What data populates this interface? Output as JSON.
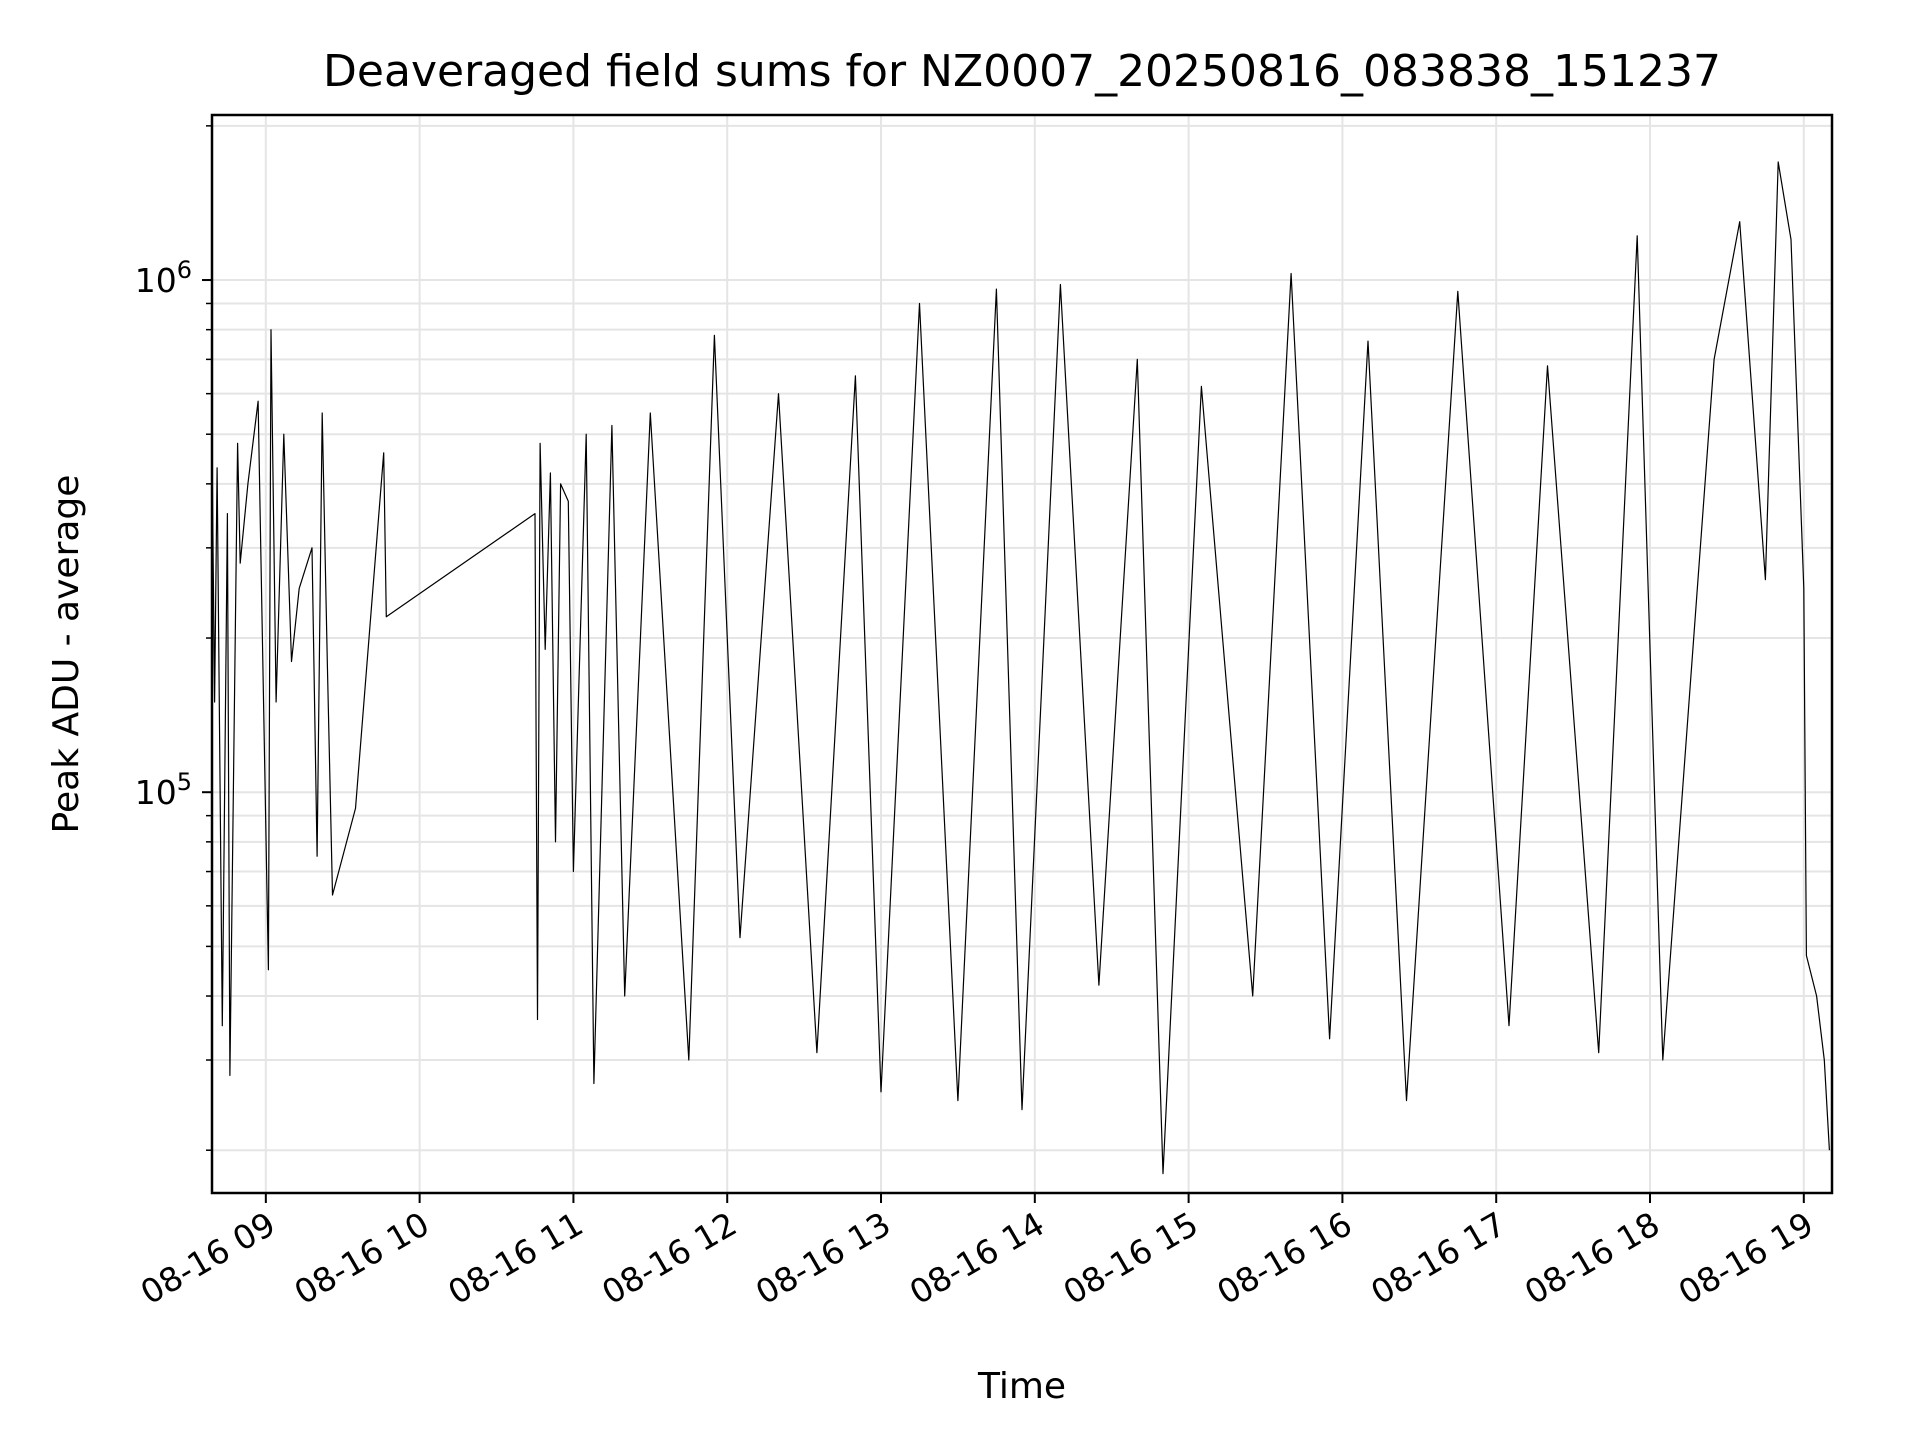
{
  "chart_data": {
    "type": "line",
    "title": "Deaveraged field sums for NZ0007_20250816_083838_151237",
    "xlabel": "Time",
    "ylabel": "Peak ADU - average",
    "y_scale": "log",
    "ylim": [
      16500,
      2100000
    ],
    "xlim": [
      "08-16 08:39",
      "08-16 19:11"
    ],
    "x_ticks": [
      "08-16 09",
      "08-16 10",
      "08-16 11",
      "08-16 12",
      "08-16 13",
      "08-16 14",
      "08-16 15",
      "08-16 16",
      "08-16 17",
      "08-16 18",
      "08-16 19"
    ],
    "y_ticks": [
      {
        "base": "10",
        "exp": "5"
      },
      {
        "base": "10",
        "exp": "6"
      }
    ],
    "grid": true,
    "line_color": "#000000",
    "grid_color": "#e5e5e5",
    "series": [
      {
        "points": [
          [
            "08-16 08:39",
            480000
          ],
          [
            "08-16 08:40",
            150000
          ],
          [
            "08-16 08:41",
            430000
          ],
          [
            "08-16 08:43",
            35000
          ],
          [
            "08-16 08:45",
            350000
          ],
          [
            "08-16 08:46",
            28000
          ],
          [
            "08-16 08:49",
            480000
          ],
          [
            "08-16 08:50",
            280000
          ],
          [
            "08-16 08:53",
            400000
          ],
          [
            "08-16 08:57",
            580000
          ],
          [
            "08-16 09:01",
            45000
          ],
          [
            "08-16 09:02",
            800000
          ],
          [
            "08-16 09:04",
            150000
          ],
          [
            "08-16 09:07",
            500000
          ],
          [
            "08-16 09:10",
            180000
          ],
          [
            "08-16 09:13",
            250000
          ],
          [
            "08-16 09:18",
            300000
          ],
          [
            "08-16 09:20",
            75000
          ],
          [
            "08-16 09:22",
            550000
          ],
          [
            "08-16 09:24",
            180000
          ],
          [
            "08-16 09:26",
            63000
          ],
          [
            "08-16 09:35",
            93000
          ],
          [
            "08-16 09:46",
            460000
          ],
          [
            "08-16 09:47",
            220000
          ],
          [
            "08-16 10:45",
            350000
          ],
          [
            "08-16 10:46",
            36000
          ],
          [
            "08-16 10:47",
            480000
          ],
          [
            "08-16 10:49",
            190000
          ],
          [
            "08-16 10:51",
            420000
          ],
          [
            "08-16 10:53",
            80000
          ],
          [
            "08-16 10:55",
            400000
          ],
          [
            "08-16 10:58",
            370000
          ],
          [
            "08-16 11:00",
            70000
          ],
          [
            "08-16 11:05",
            500000
          ],
          [
            "08-16 11:08",
            27000
          ],
          [
            "08-16 11:15",
            520000
          ],
          [
            "08-16 11:20",
            40000
          ],
          [
            "08-16 11:30",
            550000
          ],
          [
            "08-16 11:45",
            30000
          ],
          [
            "08-16 11:55",
            780000
          ],
          [
            "08-16 12:05",
            52000
          ],
          [
            "08-16 12:20",
            600000
          ],
          [
            "08-16 12:35",
            31000
          ],
          [
            "08-16 12:50",
            650000
          ],
          [
            "08-16 13:00",
            26000
          ],
          [
            "08-16 13:15",
            900000
          ],
          [
            "08-16 13:30",
            25000
          ],
          [
            "08-16 13:45",
            960000
          ],
          [
            "08-16 13:55",
            24000
          ],
          [
            "08-16 14:10",
            980000
          ],
          [
            "08-16 14:25",
            42000
          ],
          [
            "08-16 14:40",
            700000
          ],
          [
            "08-16 14:50",
            18000
          ],
          [
            "08-16 15:05",
            620000
          ],
          [
            "08-16 15:25",
            40000
          ],
          [
            "08-16 15:40",
            1030000
          ],
          [
            "08-16 15:55",
            33000
          ],
          [
            "08-16 16:10",
            760000
          ],
          [
            "08-16 16:25",
            25000
          ],
          [
            "08-16 16:45",
            950000
          ],
          [
            "08-16 17:05",
            35000
          ],
          [
            "08-16 17:20",
            680000
          ],
          [
            "08-16 17:40",
            31000
          ],
          [
            "08-16 17:55",
            1220000
          ],
          [
            "08-16 18:05",
            30000
          ],
          [
            "08-16 18:25",
            700000
          ],
          [
            "08-16 18:35",
            1300000
          ],
          [
            "08-16 18:45",
            260000
          ],
          [
            "08-16 18:50",
            1700000
          ],
          [
            "08-16 18:55",
            1200000
          ],
          [
            "08-16 19:00",
            250000
          ],
          [
            "08-16 19:01",
            48000
          ],
          [
            "08-16 19:05",
            40000
          ],
          [
            "08-16 19:08",
            30000
          ],
          [
            "08-16 19:10",
            20000
          ]
        ]
      }
    ]
  }
}
